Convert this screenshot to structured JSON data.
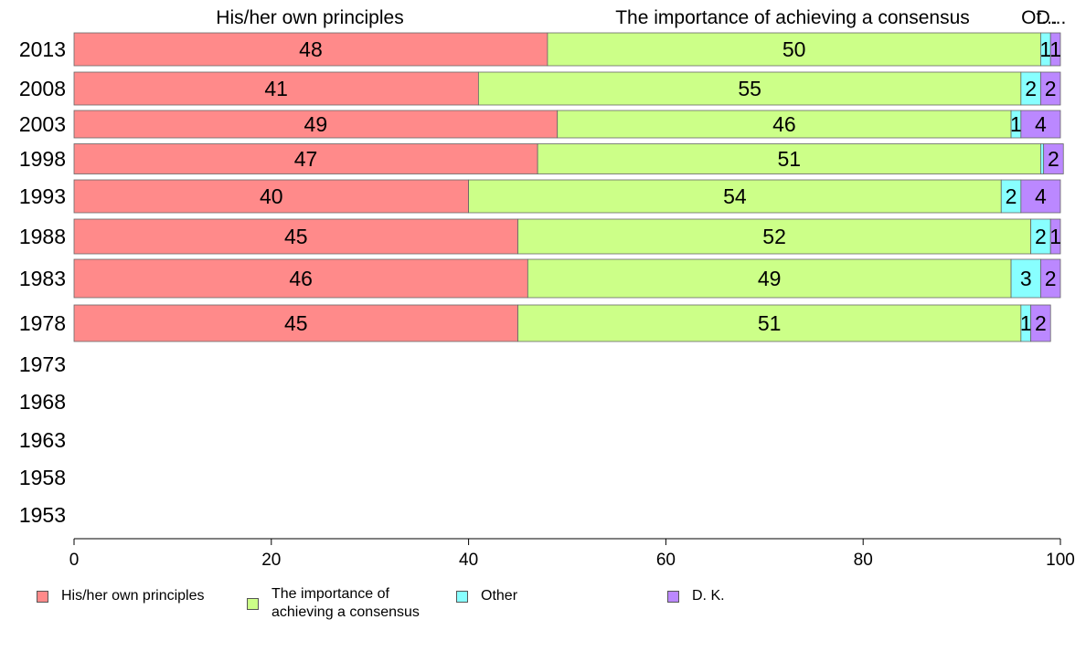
{
  "chart_data": {
    "type": "bar",
    "orientation": "horizontal",
    "stacked": true,
    "categories": [
      "2013",
      "2008",
      "2003",
      "1998",
      "1993",
      "1988",
      "1983",
      "1978",
      "1973",
      "1968",
      "1963",
      "1958",
      "1953"
    ],
    "series": [
      {
        "name": "His/her own principles",
        "color": "#ff8a8a",
        "values": [
          48,
          41,
          49,
          47,
          40,
          45,
          46,
          45,
          null,
          null,
          null,
          null,
          null
        ]
      },
      {
        "name": "The importance of achieving a consensus",
        "color": "#ccff88",
        "values": [
          50,
          55,
          46,
          51,
          54,
          52,
          49,
          51,
          null,
          null,
          null,
          null,
          null
        ]
      },
      {
        "name": "Other",
        "color": "#88ffff",
        "values": [
          1,
          2,
          1,
          0.3,
          2,
          2,
          3,
          1,
          null,
          null,
          null,
          null,
          null
        ]
      },
      {
        "name": "D. K.",
        "color": "#bb88ff",
        "values": [
          1,
          2,
          4,
          2,
          4,
          1,
          2,
          2,
          null,
          null,
          null,
          null,
          null
        ]
      }
    ],
    "data_labels": [
      [
        "48",
        "50",
        "1",
        "1"
      ],
      [
        "41",
        "55",
        "2",
        "2"
      ],
      [
        "49",
        "46",
        "1",
        "4"
      ],
      [
        "47",
        "51",
        "",
        "2"
      ],
      [
        "40",
        "54",
        "2",
        "4"
      ],
      [
        "45",
        "52",
        "2",
        "1"
      ],
      [
        "46",
        "49",
        "3",
        "2"
      ],
      [
        "45",
        "51",
        "1",
        "2"
      ]
    ],
    "column_headers": [
      "His/her own principles",
      "The importance of achieving a consensus",
      "Ot...",
      "D..."
    ],
    "xlim": [
      0,
      100
    ],
    "x_ticks": [
      0,
      20,
      40,
      60,
      80,
      100
    ],
    "grid": false,
    "legend_position": "bottom"
  },
  "legend": [
    {
      "label": "His/her own principles",
      "color": "#ff8a8a"
    },
    {
      "label": "The importance of achieving a consensus",
      "color": "#ccff88"
    },
    {
      "label": "Other",
      "color": "#88ffff"
    },
    {
      "label": "D. K.",
      "color": "#bb88ff"
    }
  ]
}
